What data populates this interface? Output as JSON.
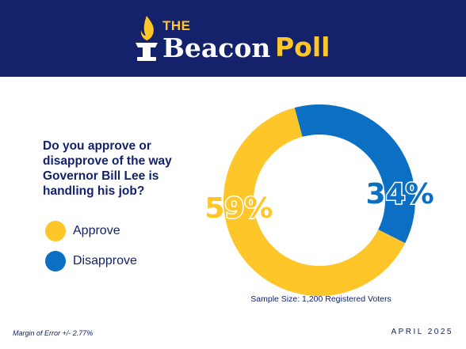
{
  "brand": {
    "the": "THE",
    "name": "Beacon",
    "poll": "Poll",
    "color_navy": "#13226b",
    "color_gold": "#ffc629"
  },
  "question": "Do you approve or disapprove of the way Governor Bill Lee is handling his job?",
  "legend": [
    {
      "label": "Approve",
      "color": "#ffc629"
    },
    {
      "label": "Disapprove",
      "color": "#0b6fc4"
    }
  ],
  "chart_data": {
    "type": "pie",
    "style": "donut",
    "categories": [
      "Approve",
      "Disapprove"
    ],
    "values": [
      59,
      34
    ],
    "data_labels": [
      "59%",
      "34%"
    ],
    "colors": [
      "#ffc629",
      "#0b6fc4"
    ]
  },
  "footer": {
    "sample": "Sample Size: 1,200 Registered Voters",
    "margin_of_error": "Margin of Error +/- 2.77%",
    "date": "APRIL 2025"
  }
}
